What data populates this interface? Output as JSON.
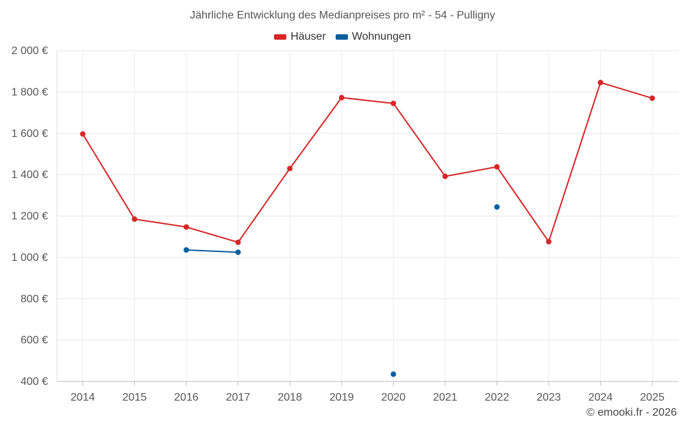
{
  "chart_data": {
    "type": "line",
    "title": "Jährliche Entwicklung des Medianpreises pro m² - 54 - Pulligny",
    "categories": [
      "2014",
      "2015",
      "2016",
      "2017",
      "2018",
      "2019",
      "2020",
      "2021",
      "2022",
      "2023",
      "2024",
      "2025"
    ],
    "y_ticks": [
      400,
      600,
      800,
      1000,
      1200,
      1400,
      1600,
      1800,
      2000
    ],
    "y_tick_labels": [
      "400 €",
      "600 €",
      "800 €",
      "1 000 €",
      "1 200 €",
      "1 400 €",
      "1 600 €",
      "1 800 €",
      "2 000 €"
    ],
    "ylim": [
      400,
      2000
    ],
    "grid": true,
    "legend_position": "top-center",
    "series": [
      {
        "name": "Häuser",
        "color": "#d62728",
        "values": [
          1597,
          1185,
          1147,
          1073,
          1430,
          1773,
          1745,
          1392,
          1438,
          1076,
          1846,
          1770
        ]
      },
      {
        "name": "Wohnungen",
        "color": "#0a5f9e",
        "values": [
          null,
          null,
          1036,
          1025,
          null,
          null,
          435,
          null,
          1244,
          null,
          null,
          null
        ]
      }
    ]
  },
  "credit": "© emooki.fr - 2026"
}
